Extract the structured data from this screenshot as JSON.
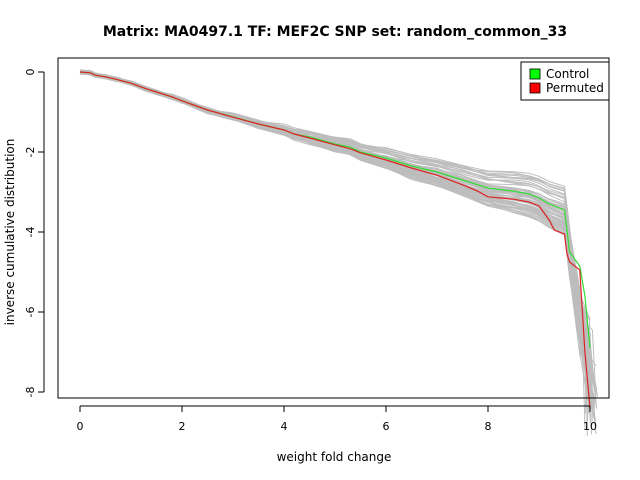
{
  "chart_data": {
    "type": "line",
    "title": "Matrix: MA0497.1 TF: MEF2C SNP set: random_common_33",
    "xlabel": "weight fold change",
    "ylabel": "inverse cumulative distribution",
    "xlim": [
      0,
      10
    ],
    "ylim": [
      -8,
      0
    ],
    "x_ticks": [
      "0",
      "2",
      "4",
      "6",
      "8",
      "10"
    ],
    "y_ticks": [
      "0",
      "-2",
      "-4",
      "-6",
      "-8"
    ],
    "legend": {
      "position": "top-right",
      "entries": [
        {
          "label": "Control",
          "color": "#00ff00"
        },
        {
          "label": "Permuted",
          "color": "#ff0000"
        }
      ]
    },
    "series": [
      {
        "name": "Control",
        "color": "#33dd33",
        "x": [
          0.0,
          0.2,
          0.3,
          0.5,
          0.7,
          1.0,
          1.3,
          1.5,
          1.8,
          2.0,
          2.5,
          3.0,
          3.5,
          4.0,
          4.2,
          4.5,
          5.0,
          5.3,
          5.5,
          6.0,
          6.5,
          7.0,
          7.5,
          7.8,
          8.0,
          8.5,
          8.8,
          9.0,
          9.2,
          9.3,
          9.5,
          9.55,
          9.6,
          9.8,
          9.9,
          10.0
        ],
        "y": [
          0.0,
          -0.02,
          -0.08,
          -0.12,
          -0.18,
          -0.28,
          -0.42,
          -0.5,
          -0.62,
          -0.72,
          -0.95,
          -1.12,
          -1.3,
          -1.45,
          -1.55,
          -1.62,
          -1.8,
          -1.88,
          -2.0,
          -2.15,
          -2.35,
          -2.5,
          -2.7,
          -2.82,
          -2.9,
          -2.98,
          -3.05,
          -3.15,
          -3.3,
          -3.35,
          -3.45,
          -3.95,
          -4.5,
          -4.85,
          -5.6,
          -6.9
        ]
      },
      {
        "name": "Permuted",
        "color": "#dd2222",
        "x": [
          0.0,
          0.2,
          0.3,
          0.5,
          0.7,
          1.0,
          1.3,
          1.5,
          1.8,
          2.0,
          2.5,
          3.0,
          3.5,
          4.0,
          4.2,
          4.5,
          5.0,
          5.3,
          5.5,
          6.0,
          6.5,
          7.0,
          7.5,
          7.8,
          8.0,
          8.5,
          8.8,
          9.0,
          9.2,
          9.3,
          9.5,
          9.55,
          9.6,
          9.8,
          9.9,
          10.0
        ],
        "y": [
          0.0,
          -0.02,
          -0.08,
          -0.12,
          -0.18,
          -0.28,
          -0.42,
          -0.5,
          -0.62,
          -0.72,
          -0.95,
          -1.13,
          -1.3,
          -1.45,
          -1.55,
          -1.65,
          -1.82,
          -1.92,
          -2.02,
          -2.2,
          -2.4,
          -2.58,
          -2.82,
          -2.98,
          -3.12,
          -3.18,
          -3.25,
          -3.35,
          -3.7,
          -3.95,
          -4.05,
          -4.55,
          -4.75,
          -4.95,
          -7.0,
          -8.4
        ]
      }
    ]
  }
}
